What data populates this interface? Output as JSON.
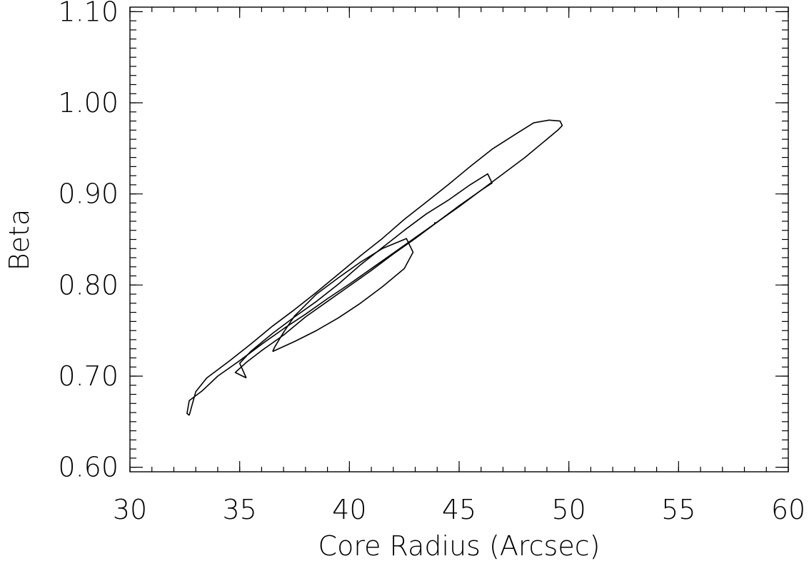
{
  "chart_data": {
    "type": "contour",
    "title": "",
    "xlabel": "Core Radius (Arcsec)",
    "ylabel": "Beta",
    "xlim": [
      30,
      60
    ],
    "ylim": [
      0.595,
      1.105
    ],
    "x_ticks": [
      30,
      35,
      40,
      45,
      50,
      55,
      60
    ],
    "x_tick_labels": [
      "30",
      "35",
      "40",
      "45",
      "50",
      "55",
      "60"
    ],
    "y_ticks": [
      0.6,
      0.7,
      0.8,
      0.9,
      1.0,
      1.1
    ],
    "y_tick_labels": [
      "0.60",
      "0.70",
      "0.80",
      "0.90",
      "1.00",
      "1.10"
    ],
    "x_minor_step": 1,
    "y_minor_step": 0.01,
    "grid": false,
    "contours": [
      {
        "level": "outer",
        "points": [
          [
            32.7,
            0.657
          ],
          [
            32.6,
            0.659
          ],
          [
            32.7,
            0.673
          ],
          [
            33.3,
            0.684
          ],
          [
            34.0,
            0.7
          ],
          [
            35.0,
            0.717
          ],
          [
            36.0,
            0.735
          ],
          [
            37.0,
            0.752
          ],
          [
            38.0,
            0.768
          ],
          [
            39.0,
            0.785
          ],
          [
            40.0,
            0.801
          ],
          [
            41.0,
            0.818
          ],
          [
            42.0,
            0.835
          ],
          [
            43.0,
            0.852
          ],
          [
            44.0,
            0.869
          ],
          [
            45.0,
            0.887
          ],
          [
            46.0,
            0.904
          ],
          [
            47.0,
            0.922
          ],
          [
            48.0,
            0.94
          ],
          [
            49.0,
            0.96
          ],
          [
            49.5,
            0.97
          ],
          [
            49.7,
            0.975
          ],
          [
            49.6,
            0.98
          ],
          [
            49.1,
            0.981
          ],
          [
            48.4,
            0.978
          ],
          [
            47.6,
            0.966
          ],
          [
            46.5,
            0.949
          ],
          [
            45.5,
            0.93
          ],
          [
            44.5,
            0.91
          ],
          [
            43.5,
            0.891
          ],
          [
            42.5,
            0.872
          ],
          [
            41.5,
            0.851
          ],
          [
            40.5,
            0.832
          ],
          [
            39.5,
            0.812
          ],
          [
            38.5,
            0.792
          ],
          [
            37.5,
            0.773
          ],
          [
            36.5,
            0.755
          ],
          [
            35.5,
            0.735
          ],
          [
            34.5,
            0.716
          ],
          [
            33.5,
            0.698
          ],
          [
            33.0,
            0.683
          ],
          [
            32.7,
            0.657
          ]
        ]
      },
      {
        "level": "middle",
        "points": [
          [
            35.3,
            0.698
          ],
          [
            34.8,
            0.704
          ],
          [
            35.3,
            0.715
          ],
          [
            36.0,
            0.728
          ],
          [
            37.0,
            0.745
          ],
          [
            38.0,
            0.765
          ],
          [
            39.0,
            0.782
          ],
          [
            40.0,
            0.799
          ],
          [
            41.0,
            0.816
          ],
          [
            42.0,
            0.834
          ],
          [
            43.0,
            0.851
          ],
          [
            44.0,
            0.869
          ],
          [
            45.0,
            0.886
          ],
          [
            46.0,
            0.904
          ],
          [
            46.5,
            0.912
          ],
          [
            46.3,
            0.922
          ],
          [
            45.5,
            0.91
          ],
          [
            44.5,
            0.893
          ],
          [
            43.5,
            0.878
          ],
          [
            42.5,
            0.86
          ],
          [
            41.5,
            0.841
          ],
          [
            40.5,
            0.822
          ],
          [
            39.5,
            0.801
          ],
          [
            38.5,
            0.782
          ],
          [
            37.5,
            0.765
          ],
          [
            36.5,
            0.747
          ],
          [
            35.5,
            0.727
          ],
          [
            35.0,
            0.714
          ],
          [
            35.3,
            0.698
          ]
        ]
      },
      {
        "level": "inner",
        "points": [
          [
            36.5,
            0.727
          ],
          [
            37.5,
            0.738
          ],
          [
            38.5,
            0.75
          ],
          [
            39.5,
            0.764
          ],
          [
            40.5,
            0.78
          ],
          [
            41.5,
            0.798
          ],
          [
            42.5,
            0.818
          ],
          [
            42.9,
            0.836
          ],
          [
            42.6,
            0.851
          ],
          [
            41.5,
            0.84
          ],
          [
            40.5,
            0.825
          ],
          [
            39.5,
            0.808
          ],
          [
            38.5,
            0.79
          ],
          [
            37.5,
            0.766
          ],
          [
            37.0,
            0.748
          ],
          [
            36.6,
            0.732
          ],
          [
            36.5,
            0.727
          ]
        ]
      }
    ],
    "best_fit": [
      43.9,
      0.868
    ]
  }
}
